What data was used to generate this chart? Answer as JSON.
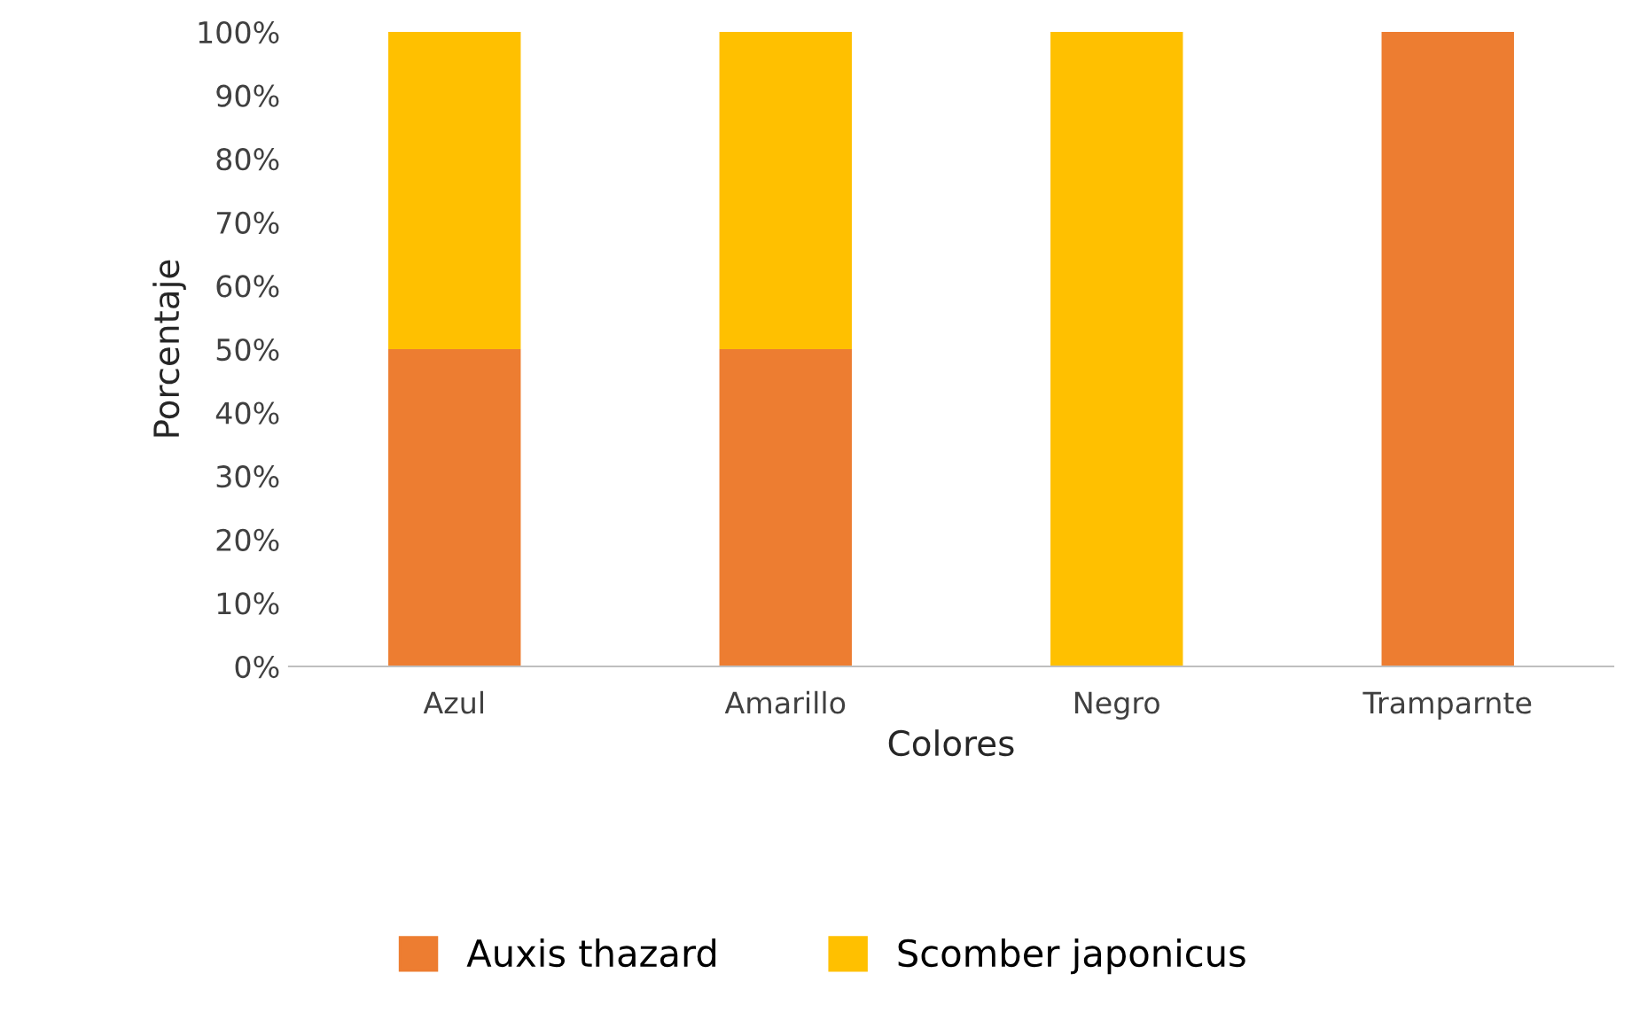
{
  "chart_data": {
    "type": "bar",
    "stacked": true,
    "xlabel": "Colores",
    "ylabel": "Porcentaje",
    "categories": [
      "Azul",
      "Amarillo",
      "Negro",
      "Tramparnte"
    ],
    "series": [
      {
        "name": "Auxis thazard",
        "color": "#ed7d31",
        "values": [
          50,
          50,
          0,
          100
        ]
      },
      {
        "name": "Scomber japonicus",
        "color": "#ffc000",
        "values": [
          50,
          50,
          100,
          0
        ]
      }
    ],
    "ylim": [
      0,
      100
    ],
    "yticks": [
      {
        "value": 0,
        "label": "0%"
      },
      {
        "value": 10,
        "label": "10%"
      },
      {
        "value": 20,
        "label": "20%"
      },
      {
        "value": 30,
        "label": "30%"
      },
      {
        "value": 40,
        "label": "40%"
      },
      {
        "value": 50,
        "label": "50%"
      },
      {
        "value": 60,
        "label": "60%"
      },
      {
        "value": 70,
        "label": "70%"
      },
      {
        "value": 80,
        "label": "80%"
      },
      {
        "value": 90,
        "label": "90%"
      },
      {
        "value": 100,
        "label": "100%"
      }
    ],
    "grid": false,
    "legend": "bottom"
  }
}
